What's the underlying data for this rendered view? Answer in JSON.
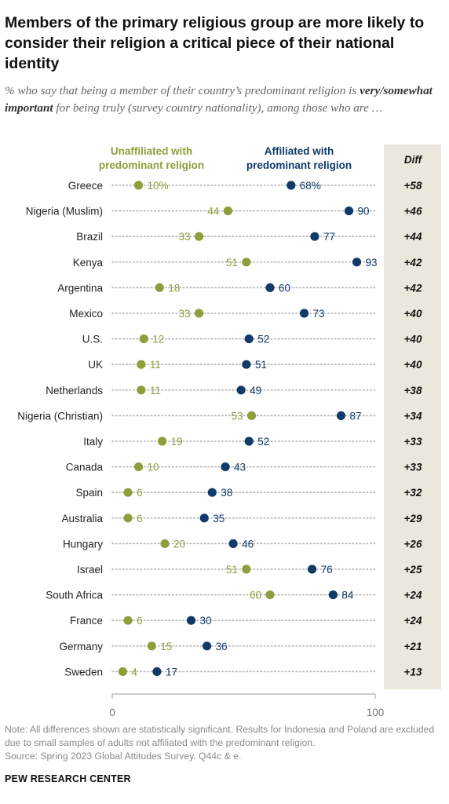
{
  "title": "Members of the primary religious group are more likely to consider their religion a critical piece of their national identity",
  "subtitle": {
    "pre": "% who say that being a member of their country’s predominant religion is ",
    "bold": "very/somewhat important",
    "post": " for being truly (survey country nationality), among those who are …"
  },
  "note": "Note: All differences shown are statistically significant. Results for Indonesia and Poland are excluded due to small samples of adults not affiliated with the predominant religion.",
  "source": "Source: Spring 2023 Global Attitudes Survey. Q44c & e.",
  "brand": "PEW RESEARCH CENTER",
  "colors": {
    "unaffiliated": "#8f9e3b",
    "affiliated": "#113a6a",
    "diff_bg": "#ece7dc",
    "dots": "#b3b3b3"
  },
  "chart_data": {
    "type": "scatter",
    "legend_placement": "top",
    "xlim": [
      0,
      100
    ],
    "x_ticks": [
      "0",
      "100"
    ],
    "diff_header": "Diff",
    "categories": [
      "Greece",
      "Nigeria (Muslim)",
      "Brazil",
      "Kenya",
      "Argentina",
      "Mexico",
      "U.S.",
      "UK",
      "Netherlands",
      "Nigeria (Christian)",
      "Italy",
      "Canada",
      "Spain",
      "Australia",
      "Hungary",
      "Israel",
      "South Africa",
      "France",
      "Germany",
      "Sweden"
    ],
    "series": [
      {
        "name": "Unaffiliated with predominant religion",
        "values": [
          10,
          44,
          33,
          51,
          18,
          33,
          12,
          11,
          11,
          53,
          19,
          10,
          6,
          6,
          20,
          51,
          60,
          6,
          15,
          4
        ]
      },
      {
        "name": "Affiliated with predominant religion",
        "values": [
          68,
          90,
          77,
          93,
          60,
          73,
          52,
          51,
          49,
          87,
          52,
          43,
          38,
          35,
          46,
          76,
          84,
          30,
          36,
          17
        ]
      }
    ],
    "value_labels": {
      "unaffiliated": [
        "10%",
        "44",
        "33",
        "51",
        "18",
        "33",
        "12",
        "11",
        "11",
        "53",
        "19",
        "10",
        "6",
        "6",
        "20",
        "51",
        "60",
        "6",
        "15",
        "4"
      ],
      "affiliated": [
        "68%",
        "90",
        "77",
        "93",
        "60",
        "73",
        "52",
        "51",
        "49",
        "87",
        "52",
        "43",
        "38",
        "35",
        "46",
        "76",
        "84",
        "30",
        "36",
        "17"
      ]
    },
    "diff": [
      "+58",
      "+46",
      "+44",
      "+42",
      "+42",
      "+40",
      "+40",
      "+40",
      "+38",
      "+34",
      "+33",
      "+33",
      "+32",
      "+29",
      "+26",
      "+25",
      "+24",
      "+24",
      "+21",
      "+13"
    ]
  }
}
